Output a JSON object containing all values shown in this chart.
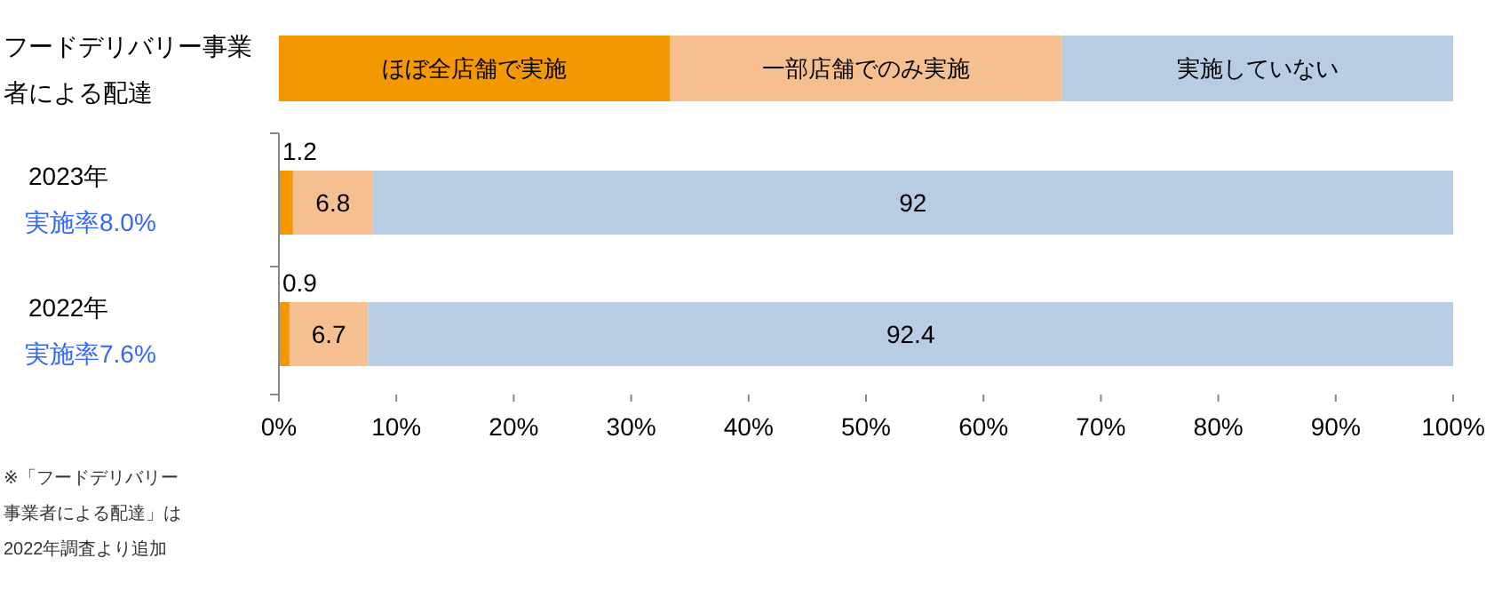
{
  "chart_data": {
    "type": "bar",
    "orientation": "horizontal",
    "stacked": true,
    "title": "フードデリバリー事業者による配達",
    "categories": [
      "2023年",
      "2022年"
    ],
    "series": [
      {
        "name": "ほぼ全店舗で実施",
        "color": "#f39800",
        "values": [
          1.2,
          0.9
        ]
      },
      {
        "name": "一部店舗でのみ実施",
        "color": "#f5bf8f",
        "values": [
          6.8,
          6.7
        ]
      },
      {
        "name": "実施していない",
        "color": "#b8cce4",
        "values": [
          92,
          92.4
        ]
      }
    ],
    "xlim": [
      0,
      100
    ],
    "xticks": [
      {
        "value": 0,
        "label": "0%"
      },
      {
        "value": 10,
        "label": "10%"
      },
      {
        "value": 20,
        "label": "20%"
      },
      {
        "value": 30,
        "label": "30%"
      },
      {
        "value": 40,
        "label": "40%"
      },
      {
        "value": 50,
        "label": "50%"
      },
      {
        "value": 60,
        "label": "60%"
      },
      {
        "value": 70,
        "label": "70%"
      },
      {
        "value": 80,
        "label": "80%"
      },
      {
        "value": 90,
        "label": "90%"
      },
      {
        "value": 100,
        "label": "100%"
      }
    ],
    "data_labels": true,
    "legend": "top",
    "grid": false,
    "annotations": [
      "実施率8.0%",
      "実施率7.6%",
      "※「フードデリバリー事業者による配達」は2022年調査より追加"
    ]
  }
}
